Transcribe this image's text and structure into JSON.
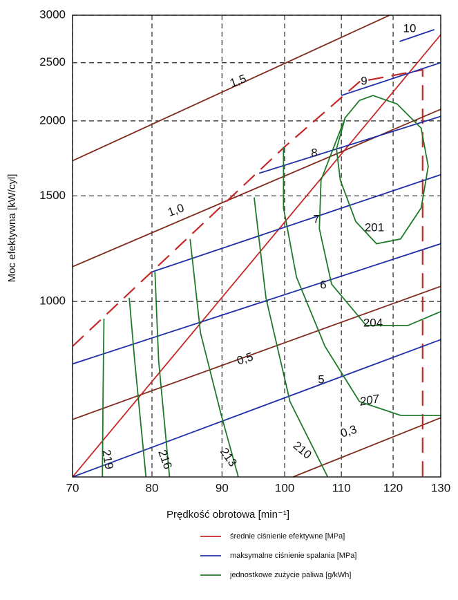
{
  "chart_data": {
    "type": "line",
    "x_label": "Prędkość obrotowa  [min⁻¹]",
    "y_label": "Moc efektywna [kW/cyl]",
    "xlim": [
      70,
      130
    ],
    "ylim": [
      510,
      3000
    ],
    "xticks": [
      70,
      80,
      90,
      100,
      110,
      120,
      130
    ],
    "yticks": [
      1000,
      1500,
      2000,
      2500,
      3000
    ],
    "log_x": true,
    "log_y": true,
    "grid": true,
    "series": [
      {
        "name": "średnie ciśnienie efektywne [MPa]",
        "color": "#c62828",
        "curves": [
          {
            "label": "1,5",
            "color": "#7f2a1b",
            "x": [
              70,
              119.3
            ],
            "values": [
              1716,
              3000
            ]
          },
          {
            "label": "1,0",
            "color": "#7f2a1b",
            "x": [
              70,
              130
            ],
            "values": [
              1143,
              2091
            ]
          },
          {
            "label": "0,5",
            "color": "#7f2a1b",
            "x": [
              70,
              130
            ],
            "values": [
              636,
              1060
            ]
          },
          {
            "label": "0,3",
            "color": "#7f2a1b",
            "x": [
              101.4,
              130
            ],
            "values": [
              510,
              640
            ]
          },
          {
            "x": [
              70,
              130
            ],
            "values": [
              510,
              2784
            ]
          },
          {
            "dashed": true,
            "x": [
              70,
              100,
              113.4,
              126.1,
              126.1
            ],
            "values": [
              842,
              1811,
              2324,
              2433,
              510
            ]
          }
        ]
      },
      {
        "name": "maksymalne ciśnienie spalania [MPa]",
        "color": "#1f2fa8",
        "curves": [
          {
            "label": "10",
            "x": [
              121.3,
              128.6
            ],
            "values": [
              2712,
              2838
            ]
          },
          {
            "label": "9",
            "x": [
              110,
              130
            ],
            "values": [
              2205,
              2500
            ]
          },
          {
            "label": "8",
            "x": [
              95.8,
              130
            ],
            "values": [
              1636,
              2035
            ]
          },
          {
            "label": "7",
            "x": [
              80,
              130
            ],
            "values": [
              1120,
              1627
            ]
          },
          {
            "label": "6",
            "x": [
              70,
              130
            ],
            "values": [
              787,
              1248
            ]
          },
          {
            "label": "5",
            "x": [
              70,
              130
            ],
            "values": [
              510,
              864
            ]
          }
        ]
      },
      {
        "name": "jednostkowe zużycie paliwa [g/kWh]",
        "color": "#1e7a2a",
        "curves": [
          {
            "label": "201",
            "x": [
              116,
              120.8,
              125.8,
              127.3,
              125.8,
              121.5,
              116.7,
              112.7,
              109.8,
              109.1,
              110.7,
              113.4,
              116
            ],
            "values": [
              2204,
              2134,
              1945,
              1680,
              1432,
              1271,
              1248,
              1359,
              1593,
              1796,
              2024,
              2163,
              2204
            ]
          },
          {
            "label": "204",
            "x": [
              110.7,
              106.3,
              106.0,
              108.2,
              114.7,
              123,
              130
            ],
            "values": [
              2024,
              1593,
              1322,
              1069,
              912,
              912,
              962
            ]
          },
          {
            "label": "207",
            "x": [
              99.8,
              99.8,
              102,
              107,
              113.4,
              121.5,
              130
            ],
            "values": [
              1810,
              1432,
              1098,
              842,
              681,
              646,
              646
            ]
          },
          {
            "label": "210",
            "x": [
              95,
              96.9,
              100.9,
              107.5
            ],
            "values": [
              1491,
              1014,
              681,
              510
            ]
          },
          {
            "label": "213",
            "x": [
              85.3,
              86.8,
              89.9,
              92.5
            ],
            "values": [
              1271,
              887,
              646,
              510
            ]
          },
          {
            "label": "216",
            "x": [
              80.4,
              80.9,
              82.4
            ],
            "values": [
              1120,
              798,
              510
            ]
          },
          {
            "x": [
              77.0,
              77.7,
              79.2
            ],
            "values": [
              1014,
              798,
              510
            ]
          },
          {
            "label": "219",
            "x": [
              73.8,
              73.7,
              73.6
            ],
            "values": [
              936,
              718,
              510
            ]
          }
        ]
      }
    ]
  }
}
